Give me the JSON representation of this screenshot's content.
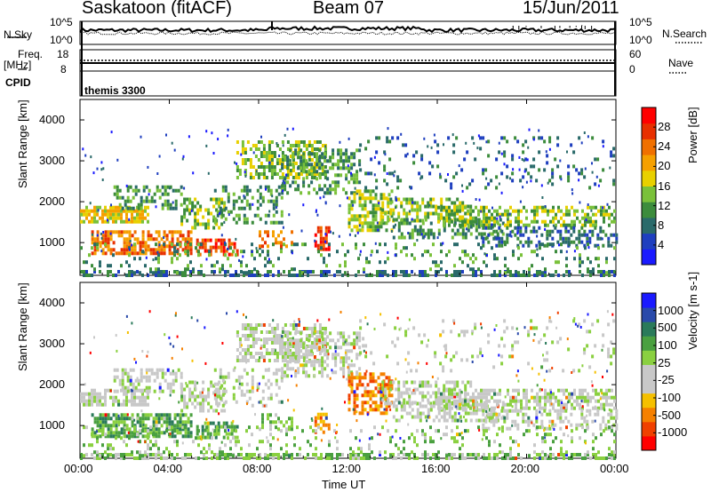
{
  "header": {
    "station": "Saskatoon (fitACF)",
    "beam": "Beam 07",
    "date": "15/Jun/2011"
  },
  "strips": {
    "nsky_label": "N.Sky",
    "nsky_ticks": [
      "10^5",
      "10^0"
    ],
    "nsearch_label": "N.Search",
    "nsearch_ticks": [
      "10^5",
      "10^0"
    ],
    "freq_label": "Freq.",
    "freq_unit": "[MHz]",
    "freq_ticks": [
      "18",
      "8"
    ],
    "nave_label": "Nave",
    "nave_ticks": [
      "60",
      "0"
    ],
    "cpid_label": "CPID",
    "cpid_value": "themis 3300"
  },
  "panels": {
    "power": {
      "ylabel": "Slant Range [km]",
      "cbar_label": "Power [dB]",
      "cbar_ticks": [
        "28",
        "24",
        "20",
        "16",
        "12",
        "8",
        "4"
      ],
      "colors": [
        "#1a1aff",
        "#1f3fbf",
        "#2a6a6a",
        "#3c8c3c",
        "#7ac13a",
        "#e8d000",
        "#f5a000",
        "#f07000",
        "#e83000",
        "#ff0000"
      ]
    },
    "velocity": {
      "ylabel": "Slant Range [km]",
      "cbar_label": "Velocity [m s-1]",
      "cbar_ticks": [
        "1000",
        "500",
        "100",
        "25",
        "-25",
        "-100",
        "-500",
        "-1000"
      ],
      "colors": [
        "#1a1aff",
        "#2a4aaa",
        "#2a7a5a",
        "#4aa040",
        "#8ad040",
        "#c8c8c8",
        "#c8c8c8",
        "#f5c000",
        "#f58000",
        "#f04000",
        "#ff0000"
      ]
    }
  },
  "xaxis": {
    "label": "Time UT",
    "ticks": [
      "00:00",
      "04:00",
      "08:00",
      "12:00",
      "16:00",
      "20:00",
      "00:00"
    ]
  },
  "chart_data": [
    {
      "type": "heatmap",
      "title": "Saskatoon (fitACF) Beam 07 15/Jun/2011",
      "xlabel": "Time UT",
      "ylabel": "Slant Range [km]",
      "xlim": [
        "00:00",
        "24:00"
      ],
      "ylim": [
        200,
        4500
      ],
      "yticks": [
        1000,
        2000,
        3000,
        4000
      ],
      "colorbar": {
        "label": "Power [dB]",
        "range": [
          0,
          30
        ],
        "ticks": [
          4,
          8,
          12,
          16,
          20,
          24,
          28
        ]
      }
    },
    {
      "type": "heatmap",
      "xlabel": "Time UT",
      "ylabel": "Slant Range [km]",
      "xlim": [
        "00:00",
        "24:00"
      ],
      "ylim": [
        200,
        4500
      ],
      "yticks": [
        1000,
        2000,
        3000,
        4000
      ],
      "colorbar": {
        "label": "Velocity [m s-1]",
        "ticks": [
          1000,
          500,
          100,
          25,
          -25,
          -100,
          -500,
          -1000
        ]
      }
    }
  ]
}
